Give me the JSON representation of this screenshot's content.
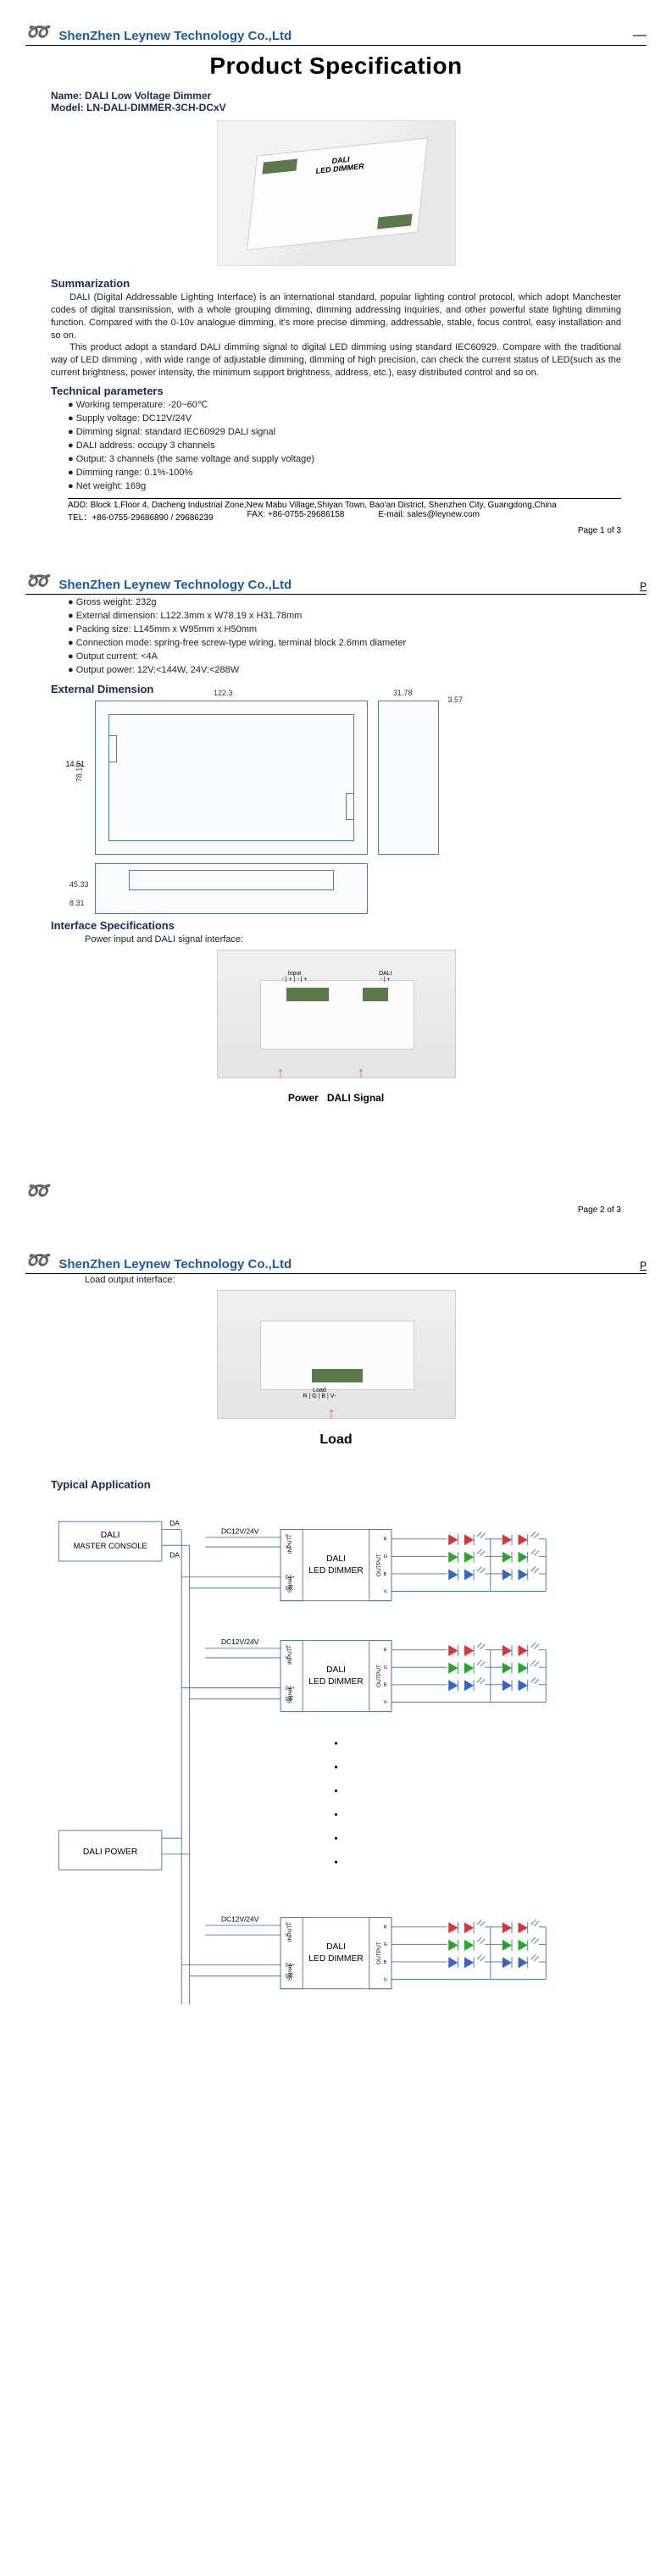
{
  "company": "ShenZhen Leynew Technology Co.,Ltd",
  "title": "Product Specification",
  "product": {
    "name_label": "Name:",
    "name": "DALI Low Voltage Dimmer",
    "model_label": "Model:",
    "model": "LN-DALI-DIMMER-3CH-DCxV"
  },
  "sections": {
    "summarization": "Summarization",
    "tech_params": "Technical parameters",
    "ext_dim": "External Dimension",
    "interface": "Interface Specifications",
    "typical": "Typical Application"
  },
  "summary_p1": "DALI (Digital Addressable Lighting Interface) is an international standard, popular lighting control protocol, which adopt Manchester codes of digital transmission, with a whole grouping dimming, dimming addressing inquiries, and other powerful state lighting dimming function. Compared with the 0-10v analogue dimming, it's more precise dimming, addressable, stable, focus control, easy installation and so on.",
  "summary_p2": "This product adopt a standard DALI dimming signal to digital LED dimming using standard IEC60929. Compare with the traditional way of LED dimming , with wide range of adjustable dimming, dimming of high precision, can check the current status of LED(such as the current brightness, power intensity, the minimum support brightness, address, etc.), easy distributed control and so on.",
  "params_p1": [
    "Working temperature: -20~60℃",
    "Supply voltage: DC12V/24V",
    "Dimming signal: standard IEC60929 DALI signal",
    "DALI address: occupy 3 channels",
    "Output: 3 channels (the same voltage and supply voltage)",
    "Dimming range: 0.1%-100%",
    "Net weight: 169g"
  ],
  "params_p2": [
    "Gross weight: 232g",
    "External dimension: L122.3mm x W78.19 x H31.78mm",
    "Packing size: L145mm x W95mm x H50mm",
    "Connection mode: spring-free screw-type wiring, terminal block 2.6mm diameter",
    "Output current: <4A",
    "Output power: 12V:<144W, 24V:<288W"
  ],
  "address": "ADD: Block 1,Floor 4, Dacheng Industrial Zone,New Mabu Village,Shiyan Town, Bao'an District, Shenzhen City, Guangdong,China",
  "tel": "TEL：+86-0755-29686890 / 29686239",
  "fax": "FAX: +86-0755-29686158",
  "email": "E-mail: sales@leynew.com",
  "page1": "Page 1 of 3",
  "page2": "Page 2 of 3",
  "interface_sub1": "Power input and DALI signal interface:",
  "interface_sub2": "Load output interface:",
  "label_power": "Power",
  "label_dali": "DALI Signal",
  "label_load": "Load",
  "dims": {
    "width": "122.3",
    "height": "78.19",
    "depth": "31.78",
    "small1": "14.51",
    "small2": "3.57",
    "small3": "45.33",
    "small4": "8.31"
  },
  "app": {
    "master": "DALI\nMASTER CONSOLE",
    "power": "DALI POWER",
    "dimmer": "DALI\nLED DIMMER",
    "da": "DA",
    "dc": "DC12V/24V",
    "input": "INPUT",
    "signal": "Signal",
    "output": "OUTPUT",
    "vplus": "V+ V-",
    "daplus": "DA+ DA-",
    "r": "R",
    "g": "G",
    "b": "B",
    "vm": "V-"
  }
}
